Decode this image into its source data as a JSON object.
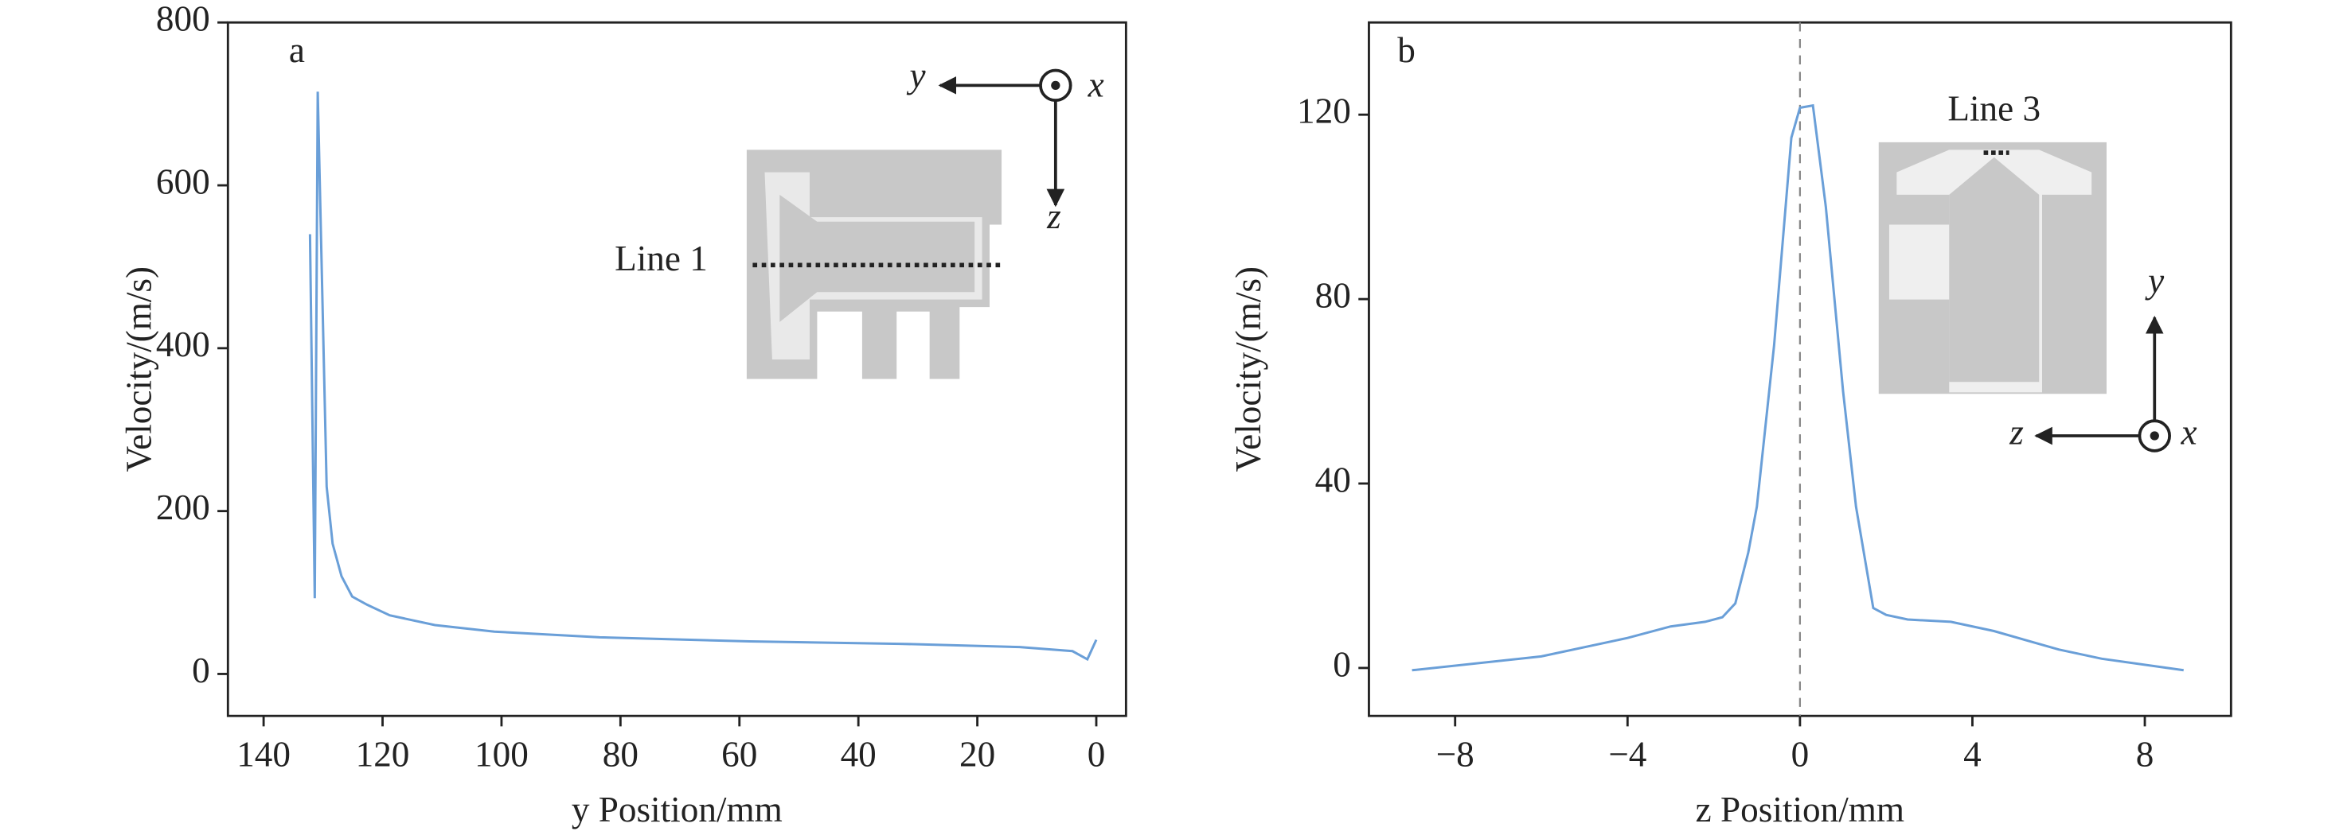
{
  "chart_data": [
    {
      "type": "line",
      "panel_label": "a",
      "x_label": "y Position/mm",
      "y_label": "Velocity/(m/s)",
      "x": [
        132.2,
        131.4,
        130.9,
        129.4,
        128.4,
        126.9,
        125.1,
        122.6,
        118.8,
        111.2,
        101.2,
        83.5,
        58.3,
        33,
        12.9,
        4,
        1.5,
        0
      ],
      "values": [
        540,
        93,
        715,
        230,
        160,
        120,
        95,
        85,
        72,
        60,
        52,
        45,
        40,
        37,
        33,
        28,
        18,
        42
      ],
      "color": "#6a9fd8",
      "xlim": [
        146,
        -5
      ],
      "ylim": [
        -51.5,
        800
      ],
      "xticks": [
        140,
        120,
        100,
        80,
        60,
        40,
        20,
        0
      ],
      "yticks": [
        0,
        200,
        400,
        600,
        800
      ],
      "annotations": [
        "Line 1",
        "y",
        "x",
        "z"
      ]
    },
    {
      "type": "line",
      "panel_label": "b",
      "x_label": "z Position/mm",
      "y_label": "Velocity/(m/s)",
      "x": [
        -9,
        -6,
        -4,
        -3,
        -2.2,
        -1.8,
        -1.5,
        -1.2,
        -1,
        -0.6,
        -0.2,
        0,
        0.3,
        0.6,
        1,
        1.3,
        1.7,
        2,
        2.5,
        3.5,
        4.5,
        6,
        7,
        8.9
      ],
      "values": [
        -0.5,
        2.5,
        6.5,
        9,
        10,
        11,
        14,
        25,
        35,
        70,
        115,
        121.5,
        122,
        100,
        60,
        35,
        13,
        11.5,
        10.5,
        10,
        8,
        4,
        2,
        -0.5
      ],
      "color": "#6a9fd8",
      "xlim": [
        -10,
        10
      ],
      "ylim": [
        -10.4,
        140
      ],
      "xticks": [
        {
          "value": -8,
          "label": "−8"
        },
        {
          "value": -4,
          "label": "−4"
        },
        0,
        4,
        8
      ],
      "yticks": [
        0,
        40,
        80,
        120
      ],
      "reference_line_x": 0,
      "annotations": [
        "Line 3",
        "y",
        "z",
        "x"
      ]
    }
  ]
}
